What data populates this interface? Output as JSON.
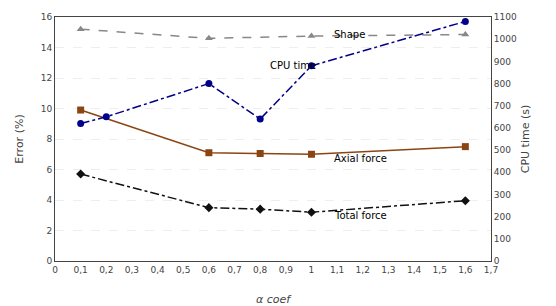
{
  "chart_data": {
    "type": "line",
    "xlabel": "α coef",
    "ylabel": "Error (%)",
    "y2label": "CPU time (s)",
    "series": [
      {
        "x": [
          0.1,
          0.6,
          1.0,
          1.6
        ],
        "values": [
          15.2,
          14.6,
          14.75,
          14.85
        ],
        "color": "#888888",
        "marker": "triangle-up",
        "line_style": "dash"
      },
      {
        "x": [
          0.1,
          0.2,
          0.6,
          0.8,
          1.0,
          1.6
        ],
        "values": [
          620,
          650,
          800,
          640,
          880,
          1080
        ],
        "color": "#00008B",
        "marker": "circle",
        "line_style": "dashdot",
        "axis": "y2"
      },
      {
        "x": [
          0.1,
          0.6,
          0.8,
          1.0,
          1.6
        ],
        "values": [
          9.9,
          7.1,
          7.05,
          7.0,
          7.5
        ],
        "color": "#8B4513",
        "marker": "square",
        "line_style": "solid"
      },
      {
        "x": [
          0.1,
          0.6,
          0.8,
          1.0,
          1.6
        ],
        "values": [
          5.7,
          3.5,
          3.4,
          3.2,
          3.95
        ],
        "color": "#111111",
        "marker": "diamond",
        "line_style": "dashdot"
      }
    ],
    "annotations": [
      {
        "text": "Shape",
        "x": 1.08,
        "y": 14.85
      },
      {
        "text": "CPU time",
        "x": 0.83,
        "y": 12.8
      },
      {
        "text": "Axial force",
        "x": 1.08,
        "y": 6.7
      },
      {
        "text": "Total force",
        "x": 1.08,
        "y": 3.0
      }
    ],
    "xlim": [
      0,
      1.7
    ],
    "xticks": [
      0,
      {
        "value": 0.1,
        "label": "0,1"
      },
      {
        "value": 0.2,
        "label": "0,2"
      },
      {
        "value": 0.3,
        "label": "0,3"
      },
      {
        "value": 0.4,
        "label": "0,4"
      },
      {
        "value": 0.5,
        "label": "0,5"
      },
      {
        "value": 0.6,
        "label": "0,6"
      },
      {
        "value": 0.7,
        "label": "0,7"
      },
      {
        "value": 0.8,
        "label": "0,8"
      },
      {
        "value": 0.9,
        "label": "0,9"
      },
      1,
      {
        "value": 1.1,
        "label": "1,1"
      },
      {
        "value": 1.2,
        "label": "1,2"
      },
      {
        "value": 1.3,
        "label": "1,3"
      },
      {
        "value": 1.4,
        "label": "1,4"
      },
      {
        "value": 1.5,
        "label": "1,5"
      },
      {
        "value": 1.6,
        "label": "1,6"
      },
      {
        "value": 1.7,
        "label": "1,7"
      }
    ],
    "ylim": [
      0,
      16
    ],
    "yticks": [
      0,
      2,
      4,
      6,
      8,
      10,
      12,
      14,
      16
    ],
    "y2lim": [
      0,
      1100
    ],
    "y2ticks": [
      0,
      100,
      200,
      300,
      400,
      500,
      600,
      700,
      800,
      900,
      1000,
      1100
    ],
    "grid": true
  }
}
